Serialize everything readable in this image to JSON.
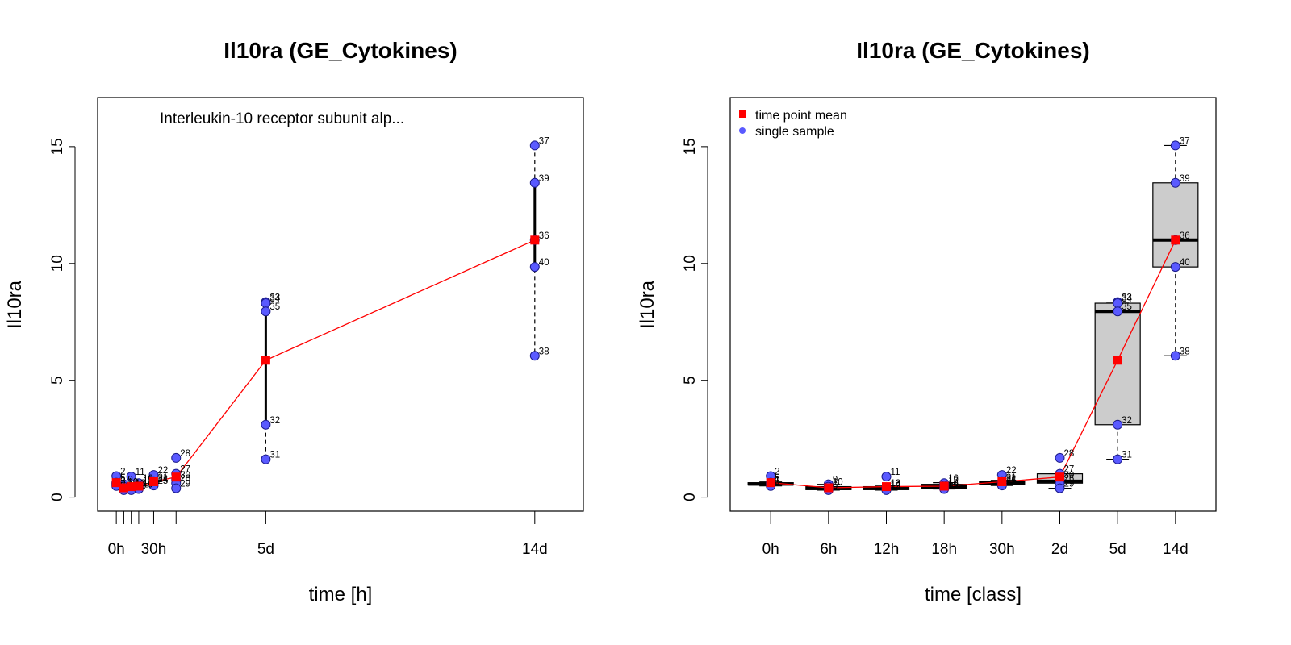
{
  "chart_data": [
    {
      "type": "scatter",
      "title": "Il10ra (GE_Cytokines)",
      "xlabel": "time [h]",
      "ylabel": "Il10ra",
      "annotation": "Interleukin-10 receptor subunit alp...",
      "xlim": [
        -15,
        375
      ],
      "ylim": [
        -0.6,
        17.1
      ],
      "y_ticks": [
        0,
        5,
        10,
        15
      ],
      "x_tick_marks": [
        0,
        6,
        12,
        18,
        30,
        48,
        120,
        336
      ],
      "x_tick_labels": [
        {
          "x": 0,
          "label": "0h"
        },
        {
          "x": 30,
          "label": "30h"
        },
        {
          "x": 120,
          "label": "5d"
        },
        {
          "x": 336,
          "label": "14d"
        }
      ],
      "grid": false,
      "samples": [
        {
          "x": 0,
          "y": 0.9,
          "label": "2"
        },
        {
          "x": 0,
          "y": 0.62,
          "label": "5"
        },
        {
          "x": 0,
          "y": 0.55,
          "label": "1"
        },
        {
          "x": 0,
          "y": 0.48,
          "label": "3"
        },
        {
          "x": 6,
          "y": 0.55,
          "label": "9"
        },
        {
          "x": 6,
          "y": 0.45,
          "label": "10"
        },
        {
          "x": 6,
          "y": 0.3,
          "label": "6"
        },
        {
          "x": 12,
          "y": 0.88,
          "label": "11"
        },
        {
          "x": 12,
          "y": 0.4,
          "label": "13"
        },
        {
          "x": 12,
          "y": 0.35,
          "label": "14"
        },
        {
          "x": 12,
          "y": 0.3,
          "label": "12"
        },
        {
          "x": 18,
          "y": 0.6,
          "label": "16"
        },
        {
          "x": 18,
          "y": 0.5,
          "label": "17"
        },
        {
          "x": 18,
          "y": 0.4,
          "label": "18"
        },
        {
          "x": 18,
          "y": 0.35,
          "label": "19"
        },
        {
          "x": 30,
          "y": 0.95,
          "label": "22"
        },
        {
          "x": 30,
          "y": 0.65,
          "label": "21"
        },
        {
          "x": 30,
          "y": 0.58,
          "label": "24"
        },
        {
          "x": 30,
          "y": 0.5,
          "label": "25"
        },
        {
          "x": 48,
          "y": 1.68,
          "label": "28"
        },
        {
          "x": 48,
          "y": 1.0,
          "label": "27"
        },
        {
          "x": 48,
          "y": 0.75,
          "label": "30"
        },
        {
          "x": 48,
          "y": 0.6,
          "label": "26"
        },
        {
          "x": 48,
          "y": 0.38,
          "label": "29"
        },
        {
          "x": 120,
          "y": 8.35,
          "label": "33"
        },
        {
          "x": 120,
          "y": 8.3,
          "label": "34"
        },
        {
          "x": 120,
          "y": 7.95,
          "label": "35"
        },
        {
          "x": 120,
          "y": 3.1,
          "label": "32"
        },
        {
          "x": 120,
          "y": 1.62,
          "label": "31"
        },
        {
          "x": 336,
          "y": 15.05,
          "label": "37"
        },
        {
          "x": 336,
          "y": 13.45,
          "label": "39"
        },
        {
          "x": 336,
          "y": 11.0,
          "label": "36"
        },
        {
          "x": 336,
          "y": 9.85,
          "label": "40"
        },
        {
          "x": 336,
          "y": 6.05,
          "label": "38"
        }
      ],
      "range_bars": [
        {
          "x": 120,
          "lo": 3.1,
          "hi": 8.3,
          "min": 1.62,
          "max": 8.35
        },
        {
          "x": 336,
          "lo": 9.85,
          "hi": 13.45,
          "min": 6.05,
          "max": 15.05
        }
      ],
      "mean_series": {
        "x": [
          0,
          6,
          12,
          18,
          30,
          48,
          120,
          336
        ],
        "y": [
          0.62,
          0.4,
          0.45,
          0.47,
          0.66,
          0.86,
          5.86,
          11.0
        ]
      },
      "colors": {
        "sample": "#5a5aff",
        "mean": "#ff0000",
        "line": "#ff0000"
      }
    },
    {
      "type": "box",
      "title": "Il10ra (GE_Cytokines)",
      "xlabel": "time [class]",
      "ylabel": "Il10ra",
      "categories": [
        "0h",
        "6h",
        "12h",
        "18h",
        "30h",
        "2d",
        "5d",
        "14d"
      ],
      "ylim": [
        -0.6,
        17.1
      ],
      "y_ticks": [
        0,
        5,
        10,
        15
      ],
      "grid": false,
      "legend": {
        "position": "top-left",
        "entries": [
          {
            "label": "time point mean",
            "marker": "square",
            "color": "#ff0000"
          },
          {
            "label": "single sample",
            "marker": "circle",
            "color": "#5a5aff"
          }
        ]
      },
      "boxes": [
        {
          "min": 0.48,
          "q1": 0.52,
          "median": 0.56,
          "q3": 0.62,
          "max": 0.65
        },
        {
          "min": 0.3,
          "q1": 0.32,
          "median": 0.38,
          "q3": 0.45,
          "max": 0.55
        },
        {
          "min": 0.3,
          "q1": 0.32,
          "median": 0.38,
          "q3": 0.45,
          "max": 0.5
        },
        {
          "min": 0.35,
          "q1": 0.38,
          "median": 0.45,
          "q3": 0.55,
          "max": 0.62
        },
        {
          "min": 0.5,
          "q1": 0.53,
          "median": 0.6,
          "q3": 0.68,
          "max": 0.72
        },
        {
          "min": 0.38,
          "q1": 0.6,
          "median": 0.68,
          "q3": 1.0,
          "max": 1.0
        },
        {
          "min": 1.62,
          "q1": 3.1,
          "median": 7.95,
          "q3": 8.3,
          "max": 8.35
        },
        {
          "min": 6.05,
          "q1": 9.85,
          "median": 11.0,
          "q3": 13.45,
          "max": 15.05
        }
      ],
      "samples": [
        {
          "cat": 0,
          "y": 0.9,
          "label": "2"
        },
        {
          "cat": 0,
          "y": 0.62,
          "label": "5"
        },
        {
          "cat": 0,
          "y": 0.55,
          "label": "1"
        },
        {
          "cat": 0,
          "y": 0.48,
          "label": "3"
        },
        {
          "cat": 1,
          "y": 0.55,
          "label": "9"
        },
        {
          "cat": 1,
          "y": 0.45,
          "label": "10"
        },
        {
          "cat": 1,
          "y": 0.3,
          "label": "6"
        },
        {
          "cat": 2,
          "y": 0.88,
          "label": "11"
        },
        {
          "cat": 2,
          "y": 0.4,
          "label": "13"
        },
        {
          "cat": 2,
          "y": 0.35,
          "label": "14"
        },
        {
          "cat": 2,
          "y": 0.3,
          "label": "12"
        },
        {
          "cat": 3,
          "y": 0.6,
          "label": "16"
        },
        {
          "cat": 3,
          "y": 0.5,
          "label": "17"
        },
        {
          "cat": 3,
          "y": 0.4,
          "label": "18"
        },
        {
          "cat": 3,
          "y": 0.35,
          "label": "19"
        },
        {
          "cat": 4,
          "y": 0.95,
          "label": "22"
        },
        {
          "cat": 4,
          "y": 0.65,
          "label": "21"
        },
        {
          "cat": 4,
          "y": 0.58,
          "label": "24"
        },
        {
          "cat": 4,
          "y": 0.5,
          "label": "25"
        },
        {
          "cat": 5,
          "y": 1.68,
          "label": "28"
        },
        {
          "cat": 5,
          "y": 1.0,
          "label": "27"
        },
        {
          "cat": 5,
          "y": 0.75,
          "label": "30"
        },
        {
          "cat": 5,
          "y": 0.6,
          "label": "26"
        },
        {
          "cat": 5,
          "y": 0.38,
          "label": "29"
        },
        {
          "cat": 6,
          "y": 8.35,
          "label": "33"
        },
        {
          "cat": 6,
          "y": 8.3,
          "label": "34"
        },
        {
          "cat": 6,
          "y": 7.95,
          "label": "35"
        },
        {
          "cat": 6,
          "y": 3.1,
          "label": "32"
        },
        {
          "cat": 6,
          "y": 1.62,
          "label": "31"
        },
        {
          "cat": 7,
          "y": 15.05,
          "label": "37"
        },
        {
          "cat": 7,
          "y": 13.45,
          "label": "39"
        },
        {
          "cat": 7,
          "y": 11.0,
          "label": "36"
        },
        {
          "cat": 7,
          "y": 9.85,
          "label": "40"
        },
        {
          "cat": 7,
          "y": 6.05,
          "label": "38"
        }
      ],
      "means": [
        0.62,
        0.4,
        0.45,
        0.47,
        0.66,
        0.86,
        5.86,
        11.0
      ],
      "colors": {
        "sample": "#5a5aff",
        "mean": "#ff0000",
        "line": "#ff0000",
        "box_fill": "#cccccc"
      }
    }
  ]
}
